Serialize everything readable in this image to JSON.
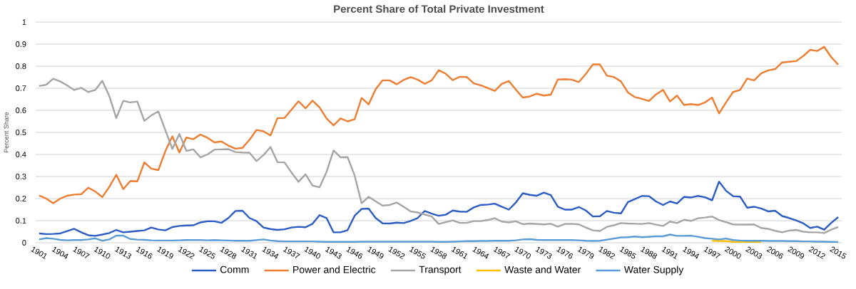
{
  "chart_data": {
    "type": "line",
    "title": "Percent Share of Total Private Investment",
    "ylabel": "Percent Share",
    "categories": [
      "1901",
      null,
      null,
      "1904",
      null,
      null,
      "1907",
      null,
      null,
      "1910",
      null,
      null,
      "1913",
      null,
      null,
      "1916",
      null,
      null,
      "1919",
      null,
      null,
      "1922",
      null,
      null,
      "1925",
      null,
      null,
      "1928",
      null,
      null,
      "1931",
      null,
      null,
      "1934",
      null,
      null,
      "1937",
      null,
      null,
      "1940",
      null,
      null,
      "1943",
      null,
      null,
      "1946",
      null,
      null,
      "1949",
      null,
      null,
      "1952",
      null,
      null,
      "1955",
      null,
      null,
      "1958",
      null,
      null,
      "1961",
      null,
      null,
      "1964",
      null,
      null,
      "1967",
      null,
      null,
      "1970",
      null,
      null,
      "1973",
      null,
      null,
      "1976",
      null,
      null,
      "1979",
      null,
      null,
      "1982",
      null,
      null,
      "1985",
      null,
      null,
      "1988",
      null,
      null,
      "1991",
      null,
      null,
      "1994",
      null,
      null,
      "1997",
      null,
      null,
      "2000",
      null,
      null,
      "2003",
      null,
      null,
      "2006",
      null,
      null,
      "2009",
      null,
      null,
      "2012",
      null,
      null,
      "2015"
    ],
    "ylim": [
      0,
      1
    ],
    "yticks": [
      0,
      0.1,
      0.2,
      0.3,
      0.4,
      0.5,
      0.6,
      0.7,
      0.8,
      0.9,
      1
    ],
    "grid": "y",
    "legend": "bottom",
    "marker": "none",
    "line_style": "solid",
    "series": [
      {
        "name": "Comm",
        "color": "#2a5cc4",
        "values": [
          0.042,
          0.039,
          0.04,
          0.042,
          0.053,
          0.063,
          0.047,
          0.034,
          0.031,
          0.037,
          0.044,
          0.058,
          0.047,
          0.05,
          0.053,
          0.056,
          0.069,
          0.06,
          0.056,
          0.071,
          0.076,
          0.078,
          0.079,
          0.092,
          0.097,
          0.097,
          0.09,
          0.112,
          0.144,
          0.145,
          0.112,
          0.098,
          0.069,
          0.062,
          0.058,
          0.061,
          0.069,
          0.072,
          0.07,
          0.086,
          0.125,
          0.112,
          0.047,
          0.047,
          0.057,
          0.122,
          0.153,
          0.155,
          0.112,
          0.088,
          0.087,
          0.091,
          0.089,
          0.099,
          0.112,
          0.144,
          0.132,
          0.122,
          0.127,
          0.146,
          0.141,
          0.14,
          0.16,
          0.171,
          0.173,
          0.177,
          0.163,
          0.15,
          0.182,
          0.224,
          0.217,
          0.213,
          0.227,
          0.216,
          0.163,
          0.15,
          0.15,
          0.162,
          0.146,
          0.119,
          0.12,
          0.144,
          0.136,
          0.133,
          0.184,
          0.198,
          0.212,
          0.211,
          0.187,
          0.171,
          0.187,
          0.178,
          0.208,
          0.205,
          0.212,
          0.206,
          0.192,
          0.277,
          0.235,
          0.211,
          0.209,
          0.159,
          0.163,
          0.155,
          0.142,
          0.145,
          0.121,
          0.112,
          0.101,
          0.088,
          0.067,
          0.073,
          0.059,
          0.09,
          0.116
        ]
      },
      {
        "name": "Power and Electric",
        "color": "#ed7d31",
        "values": [
          0.214,
          0.2,
          0.179,
          0.2,
          0.213,
          0.218,
          0.22,
          0.249,
          0.232,
          0.207,
          0.253,
          0.308,
          0.243,
          0.28,
          0.278,
          0.364,
          0.336,
          0.329,
          0.415,
          0.482,
          0.409,
          0.477,
          0.469,
          0.49,
          0.476,
          0.455,
          0.459,
          0.44,
          0.426,
          0.43,
          0.466,
          0.511,
          0.505,
          0.486,
          0.565,
          0.565,
          0.603,
          0.641,
          0.609,
          0.644,
          0.613,
          0.563,
          0.532,
          0.563,
          0.55,
          0.559,
          0.656,
          0.627,
          0.695,
          0.736,
          0.736,
          0.718,
          0.738,
          0.75,
          0.739,
          0.72,
          0.736,
          0.782,
          0.766,
          0.737,
          0.752,
          0.751,
          0.722,
          0.713,
          0.701,
          0.688,
          0.72,
          0.733,
          0.694,
          0.658,
          0.663,
          0.675,
          0.667,
          0.671,
          0.74,
          0.741,
          0.739,
          0.728,
          0.765,
          0.808,
          0.808,
          0.757,
          0.751,
          0.731,
          0.681,
          0.66,
          0.652,
          0.642,
          0.672,
          0.693,
          0.64,
          0.667,
          0.624,
          0.628,
          0.624,
          0.636,
          0.658,
          0.586,
          0.636,
          0.683,
          0.692,
          0.744,
          0.736,
          0.767,
          0.781,
          0.787,
          0.817,
          0.82,
          0.823,
          0.846,
          0.874,
          0.869,
          0.888,
          0.841,
          0.807
        ]
      },
      {
        "name": "Transport",
        "color": "#a5a5a5",
        "values": [
          0.71,
          0.716,
          0.743,
          0.731,
          0.713,
          0.692,
          0.702,
          0.683,
          0.692,
          0.734,
          0.665,
          0.565,
          0.643,
          0.636,
          0.64,
          0.552,
          0.577,
          0.595,
          0.51,
          0.425,
          0.493,
          0.416,
          0.423,
          0.387,
          0.4,
          0.422,
          0.423,
          0.424,
          0.411,
          0.409,
          0.408,
          0.37,
          0.397,
          0.434,
          0.365,
          0.364,
          0.318,
          0.276,
          0.31,
          0.259,
          0.251,
          0.321,
          0.418,
          0.387,
          0.388,
          0.305,
          0.179,
          0.208,
          0.188,
          0.168,
          0.171,
          0.182,
          0.163,
          0.142,
          0.137,
          0.128,
          0.119,
          0.085,
          0.093,
          0.101,
          0.09,
          0.09,
          0.098,
          0.098,
          0.103,
          0.111,
          0.096,
          0.092,
          0.097,
          0.084,
          0.087,
          0.085,
          0.083,
          0.086,
          0.073,
          0.085,
          0.086,
          0.083,
          0.069,
          0.056,
          0.053,
          0.072,
          0.079,
          0.089,
          0.087,
          0.086,
          0.085,
          0.089,
          0.082,
          0.076,
          0.096,
          0.089,
          0.104,
          0.099,
          0.111,
          0.114,
          0.119,
          0.103,
          0.093,
          0.083,
          0.082,
          0.082,
          0.083,
          0.067,
          0.063,
          0.054,
          0.047,
          0.055,
          0.058,
          0.05,
          0.047,
          0.047,
          0.044,
          0.059,
          0.071
        ]
      },
      {
        "name": "Waste and Water",
        "color": "#ffc000",
        "values": [
          null,
          null,
          null,
          null,
          null,
          null,
          null,
          null,
          null,
          null,
          null,
          null,
          null,
          null,
          null,
          null,
          null,
          null,
          null,
          null,
          null,
          null,
          null,
          null,
          null,
          null,
          null,
          null,
          null,
          null,
          null,
          null,
          null,
          null,
          null,
          null,
          null,
          null,
          null,
          null,
          null,
          null,
          null,
          null,
          null,
          null,
          null,
          null,
          null,
          null,
          null,
          null,
          null,
          null,
          null,
          null,
          null,
          null,
          null,
          null,
          null,
          null,
          null,
          null,
          null,
          null,
          null,
          null,
          null,
          null,
          null,
          null,
          null,
          null,
          null,
          null,
          null,
          null,
          null,
          null,
          null,
          null,
          null,
          null,
          null,
          null,
          null,
          null,
          null,
          null,
          null,
          null,
          null,
          null,
          null,
          null,
          0.009,
          0.008,
          0.007,
          0.004,
          0.003,
          0.003,
          0.003,
          0.003,
          null,
          null,
          null,
          null,
          null,
          null,
          null,
          null,
          null,
          null,
          null
        ]
      },
      {
        "name": "Water Supply",
        "color": "#5b9bd5",
        "values": [
          0.015,
          0.021,
          0.018,
          0.013,
          0.011,
          0.012,
          0.012,
          0.015,
          0.02,
          0.009,
          0.015,
          0.032,
          0.032,
          0.017,
          0.014,
          0.013,
          0.011,
          0.01,
          0.01,
          0.01,
          0.011,
          0.012,
          0.012,
          0.012,
          0.011,
          0.012,
          0.011,
          0.01,
          0.009,
          0.009,
          0.009,
          0.012,
          0.015,
          0.01,
          0.007,
          0.006,
          0.006,
          0.006,
          0.006,
          0.006,
          0.005,
          0.004,
          0.004,
          0.004,
          0.004,
          0.004,
          0.005,
          0.005,
          0.005,
          0.005,
          0.005,
          0.005,
          0.005,
          0.005,
          0.005,
          0.005,
          0.005,
          0.004,
          0.004,
          0.005,
          0.006,
          0.007,
          0.007,
          0.008,
          0.008,
          0.009,
          0.009,
          0.009,
          0.011,
          0.015,
          0.016,
          0.013,
          0.012,
          0.012,
          0.012,
          0.012,
          0.012,
          0.011,
          0.009,
          0.008,
          0.009,
          0.014,
          0.019,
          0.024,
          0.025,
          0.028,
          0.025,
          0.027,
          0.029,
          0.029,
          0.037,
          0.031,
          0.031,
          0.032,
          0.027,
          0.021,
          0.018,
          0.015,
          0.019,
          0.012,
          0.01,
          0.009,
          0.009,
          0.009,
          0.008,
          0.008,
          0.008,
          0.007,
          0.007,
          0.006,
          0.006,
          0.005,
          0.005,
          0.004,
          0.003
        ]
      }
    ]
  }
}
